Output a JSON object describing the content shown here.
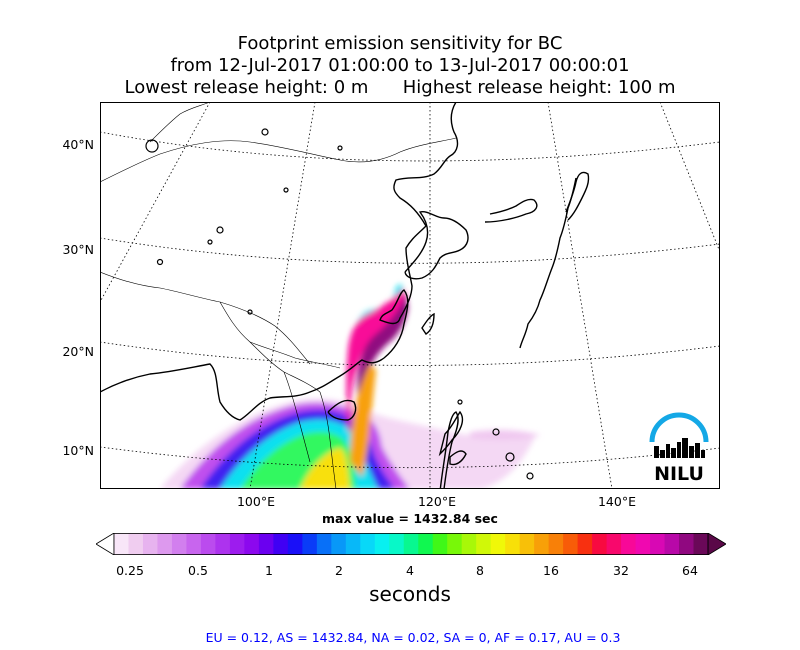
{
  "title": {
    "line1": "Footprint emission sensitivity for BC",
    "line2": "from 12-Jul-2017 01:00:00 to 13-Jul-2017 00:00:01",
    "line3": "Lowest release height: 0 m      Highest release height: 100 m"
  },
  "map": {
    "lat_labels": [
      "40°N",
      "30°N",
      "20°N",
      "10°N"
    ],
    "lon_labels": [
      "100°E",
      "120°E",
      "140°E"
    ],
    "max_value_text": "max value = 1432.84 sec",
    "logo_text": "NILU"
  },
  "colorbar": {
    "ticks": [
      "0.25",
      "0.5",
      "1",
      "2",
      "4",
      "8",
      "16",
      "32",
      "64"
    ],
    "label": "seconds",
    "colors": [
      "#f8e6f8",
      "#f0cdf0",
      "#e7b3ef",
      "#dd99ee",
      "#d27fee",
      "#c865ee",
      "#bb4bee",
      "#ad33ee",
      "#9d1cee",
      "#8c08ee",
      "#6b00f0",
      "#4000f4",
      "#1a10f8",
      "#0a3cf8",
      "#0870f8",
      "#0898f8",
      "#08b8f8",
      "#08d8f8",
      "#08f0f0",
      "#08f8c8",
      "#08f890",
      "#10f850",
      "#40f818",
      "#78f808",
      "#a8f808",
      "#d0f808",
      "#f0f808",
      "#f8e008",
      "#f8c008",
      "#f8a008",
      "#f88008",
      "#f85c08",
      "#f83010",
      "#f80a40",
      "#f8086c",
      "#f80898",
      "#f008b0",
      "#d808b4",
      "#b808a8",
      "#900880",
      "#6a0858"
    ]
  },
  "summary": "EU = 0.12,  AS = 1432.84,  NA = 0.02,  SA = 0,  AF = 0.17,  AU = 0.3"
}
